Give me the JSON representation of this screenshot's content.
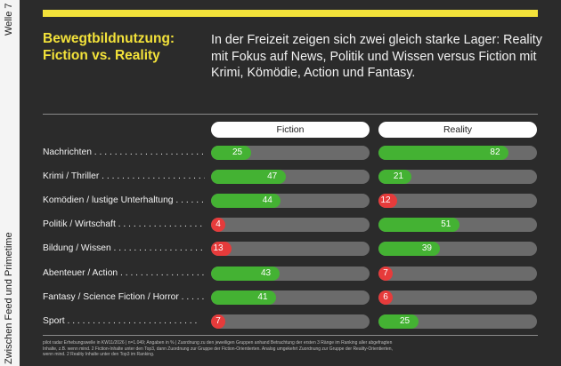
{
  "side": {
    "top_text": "Welle 7",
    "bottom_text": "Zwischen Feed und Primetime"
  },
  "header": {
    "title": "Bewegtbildnutzung: Fiction vs. Reality",
    "subtitle": "In der Freizeit zeigen sich zwei gleich starke Lager: Reality mit Fokus auf News, Politik und Wissen versus Fiction mit Krimi, Kömödie, Action und Fantasy."
  },
  "colors": {
    "accent": "#f3e23a",
    "green": "#44b233",
    "red": "#e63b3b",
    "track": "#6b6b6b"
  },
  "chart_data": {
    "type": "bar",
    "orientation": "horizontal",
    "categories": [
      "Nachrichten",
      "Krimi / Thriller",
      "Komödien / lustige Unterhaltung",
      "Politik / Wirtschaft",
      "Bildung / Wissen",
      "Abenteuer / Action",
      "Fantasy / Science Fiction / Horror",
      "Sport"
    ],
    "series": [
      {
        "name": "Fiction",
        "values": [
          25,
          47,
          44,
          4,
          13,
          43,
          41,
          7
        ],
        "colors": [
          "green",
          "green",
          "green",
          "red",
          "red",
          "green",
          "green",
          "red"
        ]
      },
      {
        "name": "Reality",
        "values": [
          82,
          21,
          12,
          51,
          39,
          7,
          6,
          25
        ],
        "colors": [
          "green",
          "green",
          "red",
          "green",
          "green",
          "red",
          "red",
          "green"
        ]
      }
    ],
    "xlim": [
      0,
      100
    ]
  },
  "footnote": "pilot radar Erhebungswelle in KW11/2026 | n=1.049; Angaben in % | Zuordnung zu den jeweiligen Gruppen anhand Betrachtung der ersten 3 Ränge im Ranking aller abgefragten Inhalte, z.B. wenn mind. 2 Fiction-Inhalte unter den Top3, dann Zuordnung zur Gruppe der Fiction-Orientierten. Analog umgekehrt Zuordnung zur Gruppe der Reality-Orientierten, wenn mind. 2 Reality Inhalte unter den Top3 im Ranking."
}
